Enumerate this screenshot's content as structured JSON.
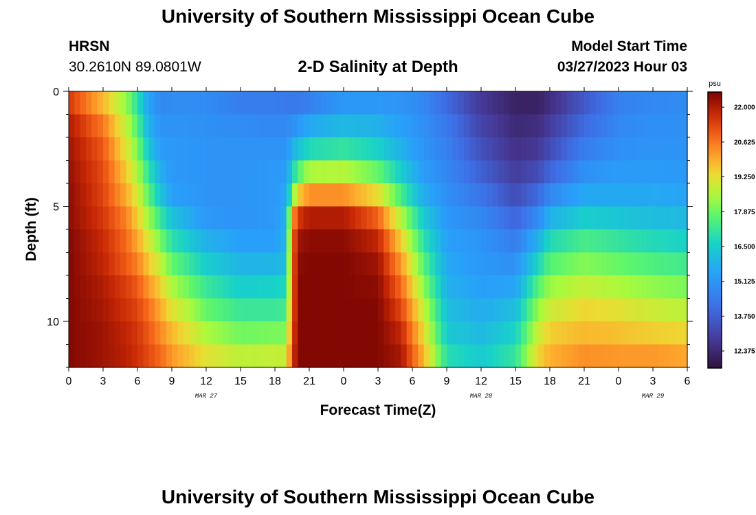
{
  "header": {
    "title": "University of Southern Mississippi Ocean Cube",
    "bottom_title": "University of Southern Mississippi Ocean Cube",
    "station": "HRSN",
    "coords": "30.2610N  89.0801W",
    "chart_title": "2-D Salinity at Depth",
    "model_label": "Model Start Time",
    "model_time": "03/27/2023 Hour 03"
  },
  "chart_data": {
    "type": "heatmap",
    "title": "2-D Salinity at Depth",
    "xlabel": "Forecast Time(Z)",
    "ylabel": "Depth (ft)",
    "x_range_hours": [
      0,
      54
    ],
    "x_tick_labels": [
      "0",
      "3",
      "6",
      "9",
      "12",
      "15",
      "18",
      "21",
      "0",
      "3",
      "6",
      "9",
      "12",
      "15",
      "18",
      "21",
      "0",
      "3",
      "6"
    ],
    "date_labels": [
      {
        "label": "MAR 27",
        "hour": 12
      },
      {
        "label": "MAR 28",
        "hour": 36
      },
      {
        "label": "MAR 29",
        "hour": 51
      }
    ],
    "y_range_ft": [
      0,
      12
    ],
    "y_ticks": [
      0,
      5,
      10
    ],
    "colorbar": {
      "unit": "psu",
      "min": 11.7,
      "max": 22.6,
      "tick_labels": [
        "22.000",
        "20.625",
        "19.250",
        "17.875",
        "16.500",
        "15.125",
        "13.750",
        "12.375"
      ],
      "tick_values": [
        22.0,
        20.625,
        19.25,
        17.875,
        16.5,
        15.125,
        13.75,
        12.375
      ]
    },
    "depth_levels_ft": [
      0.5,
      1.5,
      2.5,
      3.5,
      4.5,
      5.5,
      6.5,
      7.5,
      8.5,
      9.5,
      10.5,
      11.5
    ],
    "salinity_profiles": [
      {
        "hour": 0,
        "values": [
          21.5,
          22.0,
          22.2,
          22.3,
          22.4,
          22.4,
          22.5,
          22.5,
          22.5,
          22.5,
          22.5,
          22.5
        ]
      },
      {
        "hour": 3,
        "values": [
          19.8,
          20.6,
          21.0,
          21.2,
          21.3,
          21.5,
          21.7,
          21.8,
          22.0,
          22.1,
          22.2,
          22.2
        ]
      },
      {
        "hour": 5,
        "values": [
          18.3,
          18.8,
          19.2,
          19.6,
          20.0,
          20.5,
          20.8,
          21.0,
          21.4,
          21.6,
          21.8,
          21.9
        ]
      },
      {
        "hour": 6,
        "values": [
          17.0,
          17.5,
          18.0,
          18.5,
          19.0,
          19.5,
          20.0,
          20.5,
          21.0,
          21.3,
          21.5,
          21.6
        ]
      },
      {
        "hour": 7,
        "values": [
          15.4,
          15.8,
          16.3,
          17.0,
          17.6,
          18.3,
          19.0,
          19.6,
          20.2,
          20.7,
          21.0,
          21.2
        ]
      },
      {
        "hour": 8,
        "values": [
          14.8,
          15.1,
          15.3,
          15.8,
          16.3,
          17.2,
          18.0,
          18.8,
          19.5,
          20.0,
          20.4,
          20.8
        ]
      },
      {
        "hour": 9,
        "values": [
          14.9,
          15.1,
          15.2,
          15.2,
          15.4,
          16.2,
          17.0,
          17.8,
          18.5,
          19.2,
          19.8,
          20.2
        ]
      },
      {
        "hour": 12,
        "values": [
          14.9,
          15.0,
          15.1,
          15.1,
          15.1,
          15.2,
          15.8,
          16.5,
          17.2,
          17.8,
          18.5,
          19.2
        ]
      },
      {
        "hour": 15,
        "values": [
          14.5,
          14.9,
          15.1,
          15.1,
          15.1,
          15.1,
          15.4,
          15.9,
          16.5,
          17.2,
          17.9,
          18.7
        ]
      },
      {
        "hour": 18,
        "values": [
          14.5,
          14.8,
          15.1,
          15.2,
          15.2,
          15.2,
          15.4,
          15.9,
          16.6,
          17.2,
          18.0,
          18.8
        ]
      },
      {
        "hour": 19,
        "values": [
          14.4,
          14.8,
          15.1,
          15.3,
          15.6,
          15.9,
          15.9,
          16.1,
          16.7,
          17.3,
          18.0,
          18.8
        ]
      },
      {
        "hour": 19.5,
        "values": [
          14.4,
          15.0,
          15.7,
          16.5,
          17.5,
          19.8,
          20.5,
          20.6,
          20.6,
          20.7,
          21.0,
          21.3
        ]
      },
      {
        "hour": 20,
        "values": [
          14.4,
          15.2,
          16.2,
          17.5,
          19.5,
          21.5,
          22.2,
          22.4,
          22.5,
          22.5,
          22.5,
          22.5
        ]
      },
      {
        "hour": 21,
        "values": [
          14.6,
          15.6,
          16.8,
          18.5,
          20.3,
          22.0,
          22.4,
          22.5,
          22.5,
          22.5,
          22.5,
          22.5
        ]
      },
      {
        "hour": 24,
        "values": [
          15.2,
          16.0,
          17.1,
          18.6,
          20.3,
          22.0,
          22.4,
          22.5,
          22.5,
          22.5,
          22.5,
          22.5
        ]
      },
      {
        "hour": 27,
        "values": [
          15.2,
          15.8,
          16.6,
          17.8,
          19.3,
          20.9,
          21.8,
          22.2,
          22.4,
          22.5,
          22.5,
          22.5
        ]
      },
      {
        "hour": 29,
        "values": [
          15.1,
          15.4,
          15.8,
          16.5,
          17.4,
          18.6,
          19.5,
          20.2,
          20.8,
          21.3,
          21.8,
          22.1
        ]
      },
      {
        "hour": 31,
        "values": [
          14.8,
          15.0,
          15.1,
          15.3,
          15.7,
          16.4,
          17.0,
          17.6,
          18.2,
          18.8,
          19.3,
          19.8
        ]
      },
      {
        "hour": 33,
        "values": [
          14.0,
          14.4,
          14.6,
          14.8,
          15.0,
          15.2,
          15.4,
          15.6,
          15.8,
          16.1,
          16.4,
          16.9
        ]
      },
      {
        "hour": 36,
        "values": [
          12.8,
          13.1,
          13.4,
          13.8,
          14.3,
          14.8,
          15.1,
          15.2,
          15.4,
          15.7,
          16.0,
          16.4
        ]
      },
      {
        "hour": 39,
        "values": [
          12.2,
          12.4,
          12.6,
          12.9,
          13.3,
          13.9,
          14.5,
          15.0,
          15.5,
          16.1,
          16.6,
          17.1
        ]
      },
      {
        "hour": 41,
        "values": [
          12.2,
          12.5,
          12.8,
          13.3,
          14.0,
          14.9,
          15.8,
          16.7,
          17.6,
          18.3,
          18.9,
          19.4
        ]
      },
      {
        "hour": 42,
        "values": [
          12.5,
          12.9,
          13.3,
          13.9,
          14.8,
          15.8,
          16.8,
          17.6,
          18.3,
          18.9,
          19.5,
          19.9
        ]
      },
      {
        "hour": 45,
        "values": [
          13.6,
          14.0,
          14.5,
          15.0,
          15.6,
          16.5,
          17.4,
          18.1,
          18.8,
          19.4,
          19.8,
          20.3
        ]
      },
      {
        "hour": 48,
        "values": [
          14.6,
          14.8,
          15.0,
          15.3,
          15.6,
          16.3,
          17.1,
          17.8,
          18.5,
          19.2,
          19.7,
          20.2
        ]
      },
      {
        "hour": 51,
        "values": [
          14.8,
          15.0,
          15.1,
          15.3,
          15.6,
          16.1,
          16.8,
          17.5,
          18.2,
          18.9,
          19.5,
          20.2
        ]
      },
      {
        "hour": 54,
        "values": [
          14.9,
          15.0,
          15.1,
          15.2,
          15.5,
          16.0,
          16.6,
          17.3,
          18.0,
          18.7,
          19.4,
          20.0
        ]
      }
    ]
  }
}
